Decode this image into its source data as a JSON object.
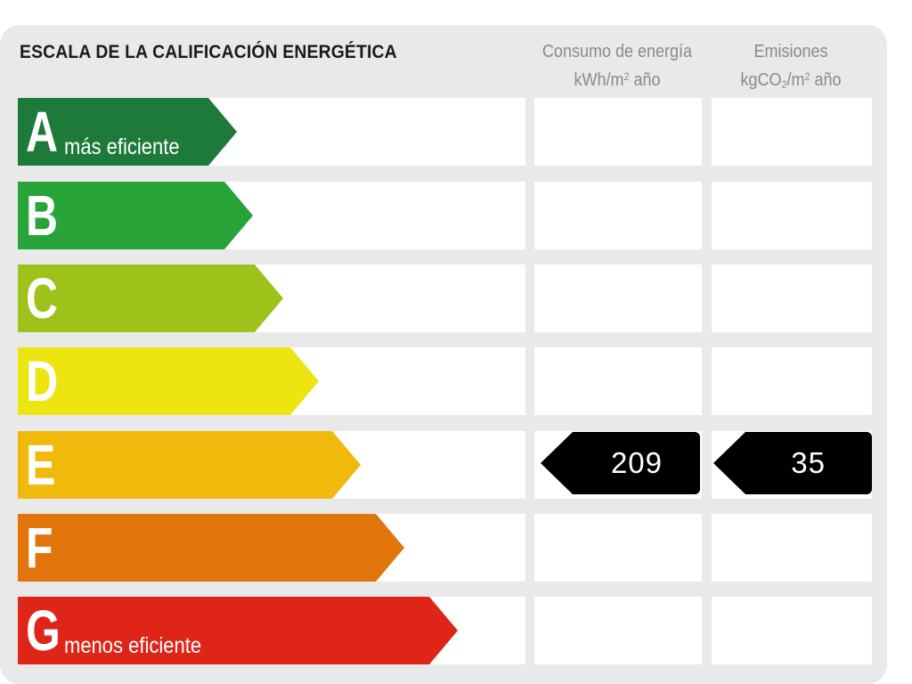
{
  "title": "ESCALA DE LA CALIFICACIÓN ENERGÉTICA",
  "columns": {
    "consumo": {
      "line1": "Consumo de energía",
      "unit_prefix": "kWh/m",
      "unit_sup": "2",
      "unit_suffix": " año"
    },
    "emisiones": {
      "line1": "Emisiones",
      "unit_prefix": "kgCO",
      "unit_sub": "2",
      "unit_mid": "/m",
      "unit_sup": "2",
      "unit_suffix": " año"
    }
  },
  "ratings": [
    {
      "letter": "A",
      "label": "más eficiente",
      "color": "#1d7a3a"
    },
    {
      "letter": "B",
      "label": "",
      "color": "#27a338"
    },
    {
      "letter": "C",
      "label": "",
      "color": "#9dc31a"
    },
    {
      "letter": "D",
      "label": "",
      "color": "#ede512"
    },
    {
      "letter": "E",
      "label": "",
      "color": "#f2b90d"
    },
    {
      "letter": "F",
      "label": "",
      "color": "#e2740c"
    },
    {
      "letter": "G",
      "label": "menos eficiente",
      "color": "#df2418"
    }
  ],
  "current_rating": "E",
  "consumo_value": "209",
  "emisiones_value": "35"
}
